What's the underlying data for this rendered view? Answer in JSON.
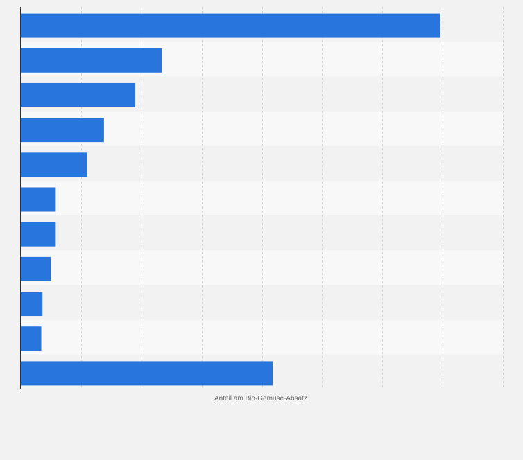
{
  "chart_data": {
    "type": "bar",
    "orientation": "horizontal",
    "xlabel": "Anteil am Bio-Gemüse-Absatz",
    "ylabel": "",
    "categories": [
      "",
      "",
      "",
      "",
      "",
      "",
      "",
      "",
      "",
      "",
      ""
    ],
    "values": [
      34.8,
      11.7,
      9.5,
      6.9,
      5.5,
      2.9,
      2.9,
      2.5,
      1.8,
      1.7,
      20.9
    ],
    "xlim": [
      0,
      40
    ],
    "grid": true,
    "bar_color": "#2876dd",
    "stripe_colors": [
      "#f2f2f2",
      "#f8f8f8"
    ]
  }
}
